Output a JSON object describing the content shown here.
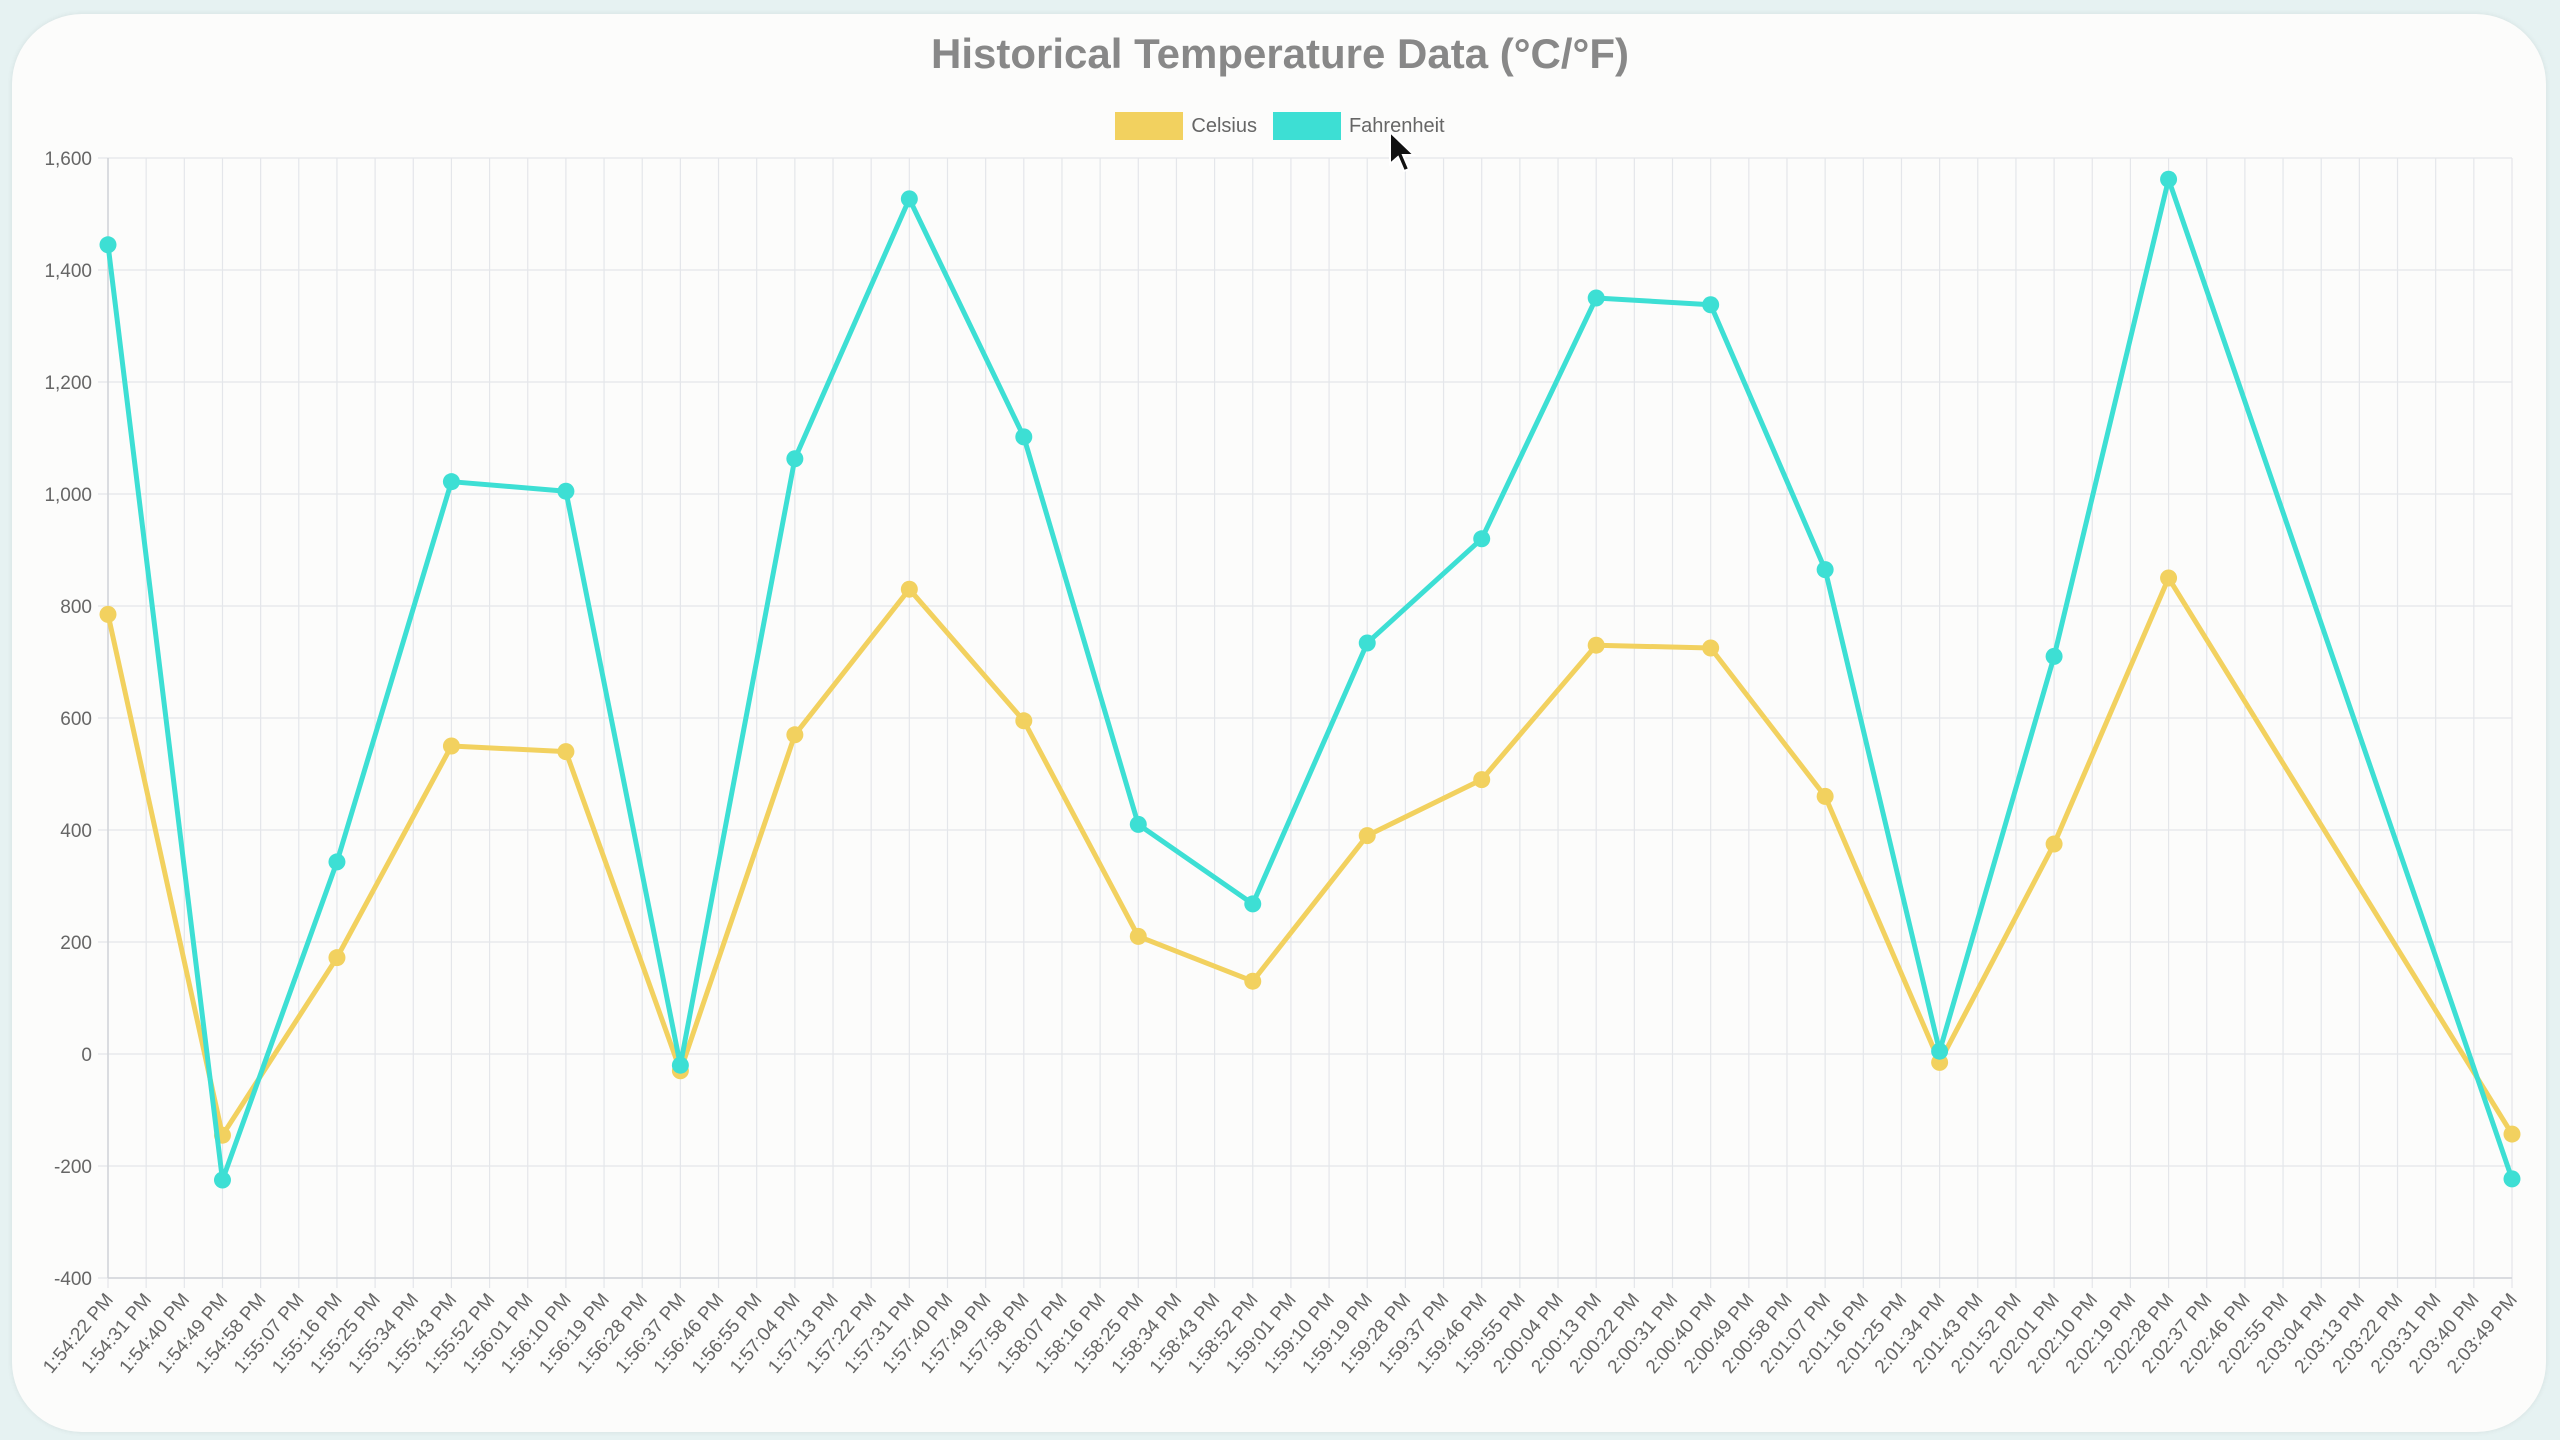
{
  "chart_data": {
    "type": "line",
    "title": "Historical Temperature Data (°C/°F)",
    "xlabel": "",
    "ylabel": "",
    "ylim": [
      -400,
      1600
    ],
    "yticks": [
      -400,
      -200,
      0,
      200,
      400,
      600,
      800,
      1000,
      1200,
      1400,
      1600
    ],
    "ytick_labels": [
      "-400",
      "-200",
      "0",
      "200",
      "400",
      "600",
      "800",
      "1,000",
      "1,200",
      "1,400",
      "1,600"
    ],
    "grid": true,
    "legend_position": "top-center",
    "categories": [
      "1:54:22 PM",
      "1:54:31 PM",
      "1:54:40 PM",
      "1:54:49 PM",
      "1:54:58 PM",
      "1:55:07 PM",
      "1:55:16 PM",
      "1:55:25 PM",
      "1:55:34 PM",
      "1:55:43 PM",
      "1:55:52 PM",
      "1:56:01 PM",
      "1:56:10 PM",
      "1:56:19 PM",
      "1:56:28 PM",
      "1:56:37 PM",
      "1:56:46 PM",
      "1:56:55 PM",
      "1:57:04 PM",
      "1:57:13 PM",
      "1:57:22 PM",
      "1:57:31 PM",
      "1:57:40 PM",
      "1:57:49 PM",
      "1:57:58 PM",
      "1:58:07 PM",
      "1:58:16 PM",
      "1:58:25 PM",
      "1:58:34 PM",
      "1:58:43 PM",
      "1:58:52 PM",
      "1:59:01 PM",
      "1:59:10 PM",
      "1:59:19 PM",
      "1:59:28 PM",
      "1:59:37 PM",
      "1:59:46 PM",
      "1:59:55 PM",
      "2:00:04 PM",
      "2:00:13 PM",
      "2:00:22 PM",
      "2:00:31 PM",
      "2:00:40 PM",
      "2:00:49 PM",
      "2:00:58 PM",
      "2:01:07 PM",
      "2:01:16 PM",
      "2:01:25 PM",
      "2:01:34 PM",
      "2:01:43 PM",
      "2:01:52 PM",
      "2:02:01 PM",
      "2:02:10 PM",
      "2:02:19 PM",
      "2:02:28 PM",
      "2:02:37 PM",
      "2:02:46 PM",
      "2:02:55 PM",
      "2:03:04 PM",
      "2:03:13 PM",
      "2:03:22 PM",
      "2:03:31 PM",
      "2:03:40 PM",
      "2:03:49 PM"
    ],
    "series": [
      {
        "name": "Celsius",
        "color": "#f2d15f",
        "points": [
          {
            "x": "1:54:22 PM",
            "y": 785
          },
          {
            "x": "1:54:49 PM",
            "y": -145
          },
          {
            "x": "1:55:16 PM",
            "y": 172
          },
          {
            "x": "1:55:43 PM",
            "y": 550
          },
          {
            "x": "1:56:10 PM",
            "y": 540
          },
          {
            "x": "1:56:37 PM",
            "y": -30
          },
          {
            "x": "1:57:04 PM",
            "y": 570
          },
          {
            "x": "1:57:31 PM",
            "y": 830
          },
          {
            "x": "1:57:58 PM",
            "y": 595
          },
          {
            "x": "1:58:25 PM",
            "y": 210
          },
          {
            "x": "1:58:52 PM",
            "y": 130
          },
          {
            "x": "1:59:19 PM",
            "y": 390
          },
          {
            "x": "1:59:46 PM",
            "y": 490
          },
          {
            "x": "2:00:13 PM",
            "y": 730
          },
          {
            "x": "2:00:40 PM",
            "y": 725
          },
          {
            "x": "2:01:07 PM",
            "y": 460
          },
          {
            "x": "2:01:34 PM",
            "y": -15
          },
          {
            "x": "2:02:01 PM",
            "y": 375
          },
          {
            "x": "2:02:28 PM",
            "y": 850
          },
          {
            "x": "2:03:49 PM",
            "y": -143
          }
        ]
      },
      {
        "name": "Fahrenheit",
        "color": "#3ddfd4",
        "points": [
          {
            "x": "1:54:22 PM",
            "y": 1445
          },
          {
            "x": "1:54:49 PM",
            "y": -225
          },
          {
            "x": "1:55:16 PM",
            "y": 343
          },
          {
            "x": "1:55:43 PM",
            "y": 1022
          },
          {
            "x": "1:56:10 PM",
            "y": 1005
          },
          {
            "x": "1:56:37 PM",
            "y": -20
          },
          {
            "x": "1:57:04 PM",
            "y": 1063
          },
          {
            "x": "1:57:31 PM",
            "y": 1527
          },
          {
            "x": "1:57:58 PM",
            "y": 1102
          },
          {
            "x": "1:58:25 PM",
            "y": 410
          },
          {
            "x": "1:58:52 PM",
            "y": 268
          },
          {
            "x": "1:59:19 PM",
            "y": 734
          },
          {
            "x": "1:59:46 PM",
            "y": 920
          },
          {
            "x": "2:00:13 PM",
            "y": 1350
          },
          {
            "x": "2:00:40 PM",
            "y": 1338
          },
          {
            "x": "2:01:07 PM",
            "y": 865
          },
          {
            "x": "2:01:34 PM",
            "y": 5
          },
          {
            "x": "2:02:01 PM",
            "y": 710
          },
          {
            "x": "2:02:28 PM",
            "y": 1562
          },
          {
            "x": "2:03:49 PM",
            "y": -223
          }
        ]
      }
    ]
  }
}
